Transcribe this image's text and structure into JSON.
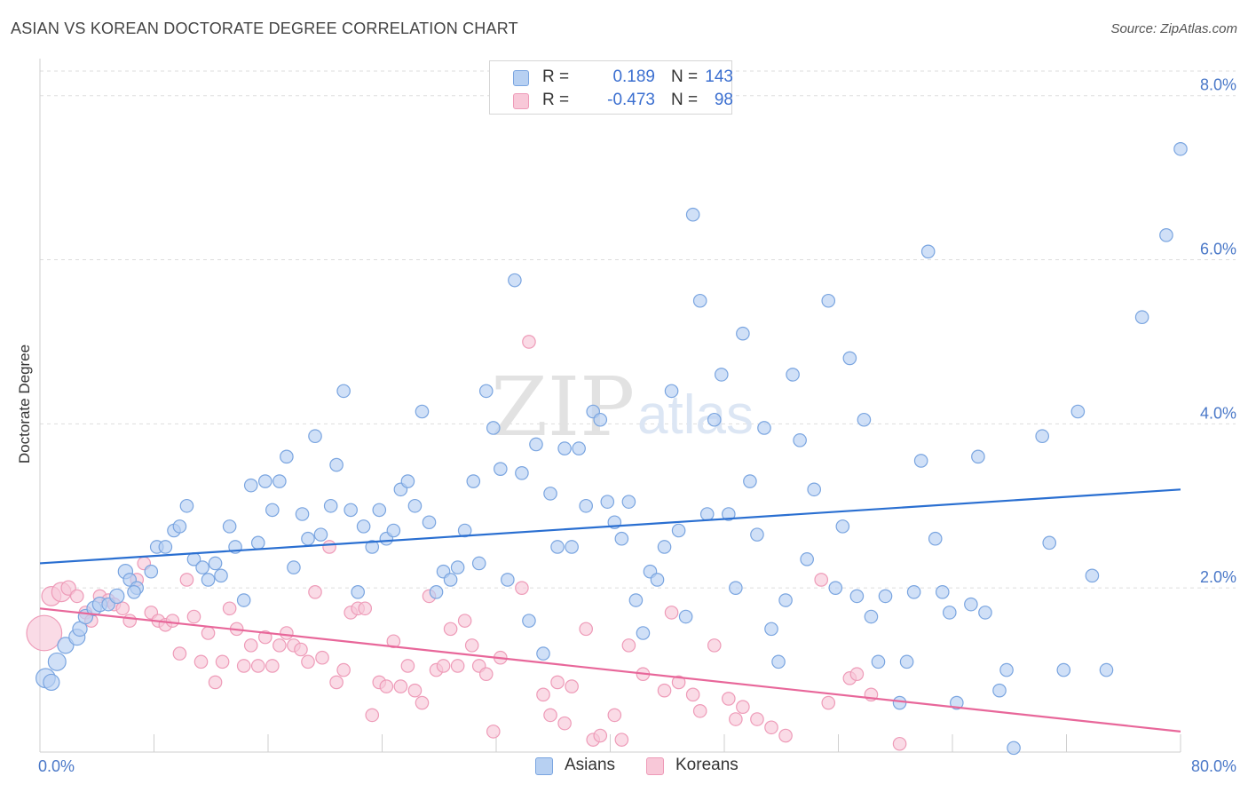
{
  "title": "ASIAN VS KOREAN DOCTORATE DEGREE CORRELATION CHART",
  "source": "Source: ZipAtlas.com",
  "watermark": {
    "zip": "ZIP",
    "atlas": "atlas"
  },
  "legend": {
    "asians": {
      "r_label": "R =",
      "r_value": "0.189",
      "n_label": "N =",
      "n_value": "143"
    },
    "koreans": {
      "r_label": "R =",
      "r_value": "-0.473",
      "n_label": "N =",
      "n_value": "98"
    }
  },
  "bottom_legend": {
    "asians": "Asians",
    "koreans": "Koreans"
  },
  "colors": {
    "asian_fill": "#b7d0f2",
    "asian_stroke": "#7aa5e0",
    "asian_line": "#2a6fd1",
    "korean_fill": "#f8c8d8",
    "korean_stroke": "#ee9bb8",
    "korean_line": "#e8679a",
    "tick_text": "#4a78c8",
    "grid": "#dddddd"
  },
  "chart_data": {
    "type": "scatter",
    "title": "ASIAN VS KOREAN DOCTORATE DEGREE CORRELATION CHART",
    "xlabel": "",
    "ylabel": "Doctorate Degree",
    "xlim": [
      0,
      80
    ],
    "ylim": [
      0,
      8.3
    ],
    "x_tick_labels": [
      "0.0%",
      "80.0%"
    ],
    "y_ticks": [
      2,
      4,
      6,
      8
    ],
    "y_tick_labels": [
      "2.0%",
      "4.0%",
      "6.0%",
      "8.0%"
    ],
    "grid": "horizontal dashed",
    "legend_position": "top-center",
    "series": [
      {
        "name": "Asians",
        "trend": [
          [
            0,
            2.3
          ],
          [
            80,
            3.2
          ]
        ],
        "points": [
          [
            0.4,
            0.9,
            1.2
          ],
          [
            0.8,
            0.85,
            1.0
          ],
          [
            1.2,
            1.1,
            1.1
          ],
          [
            1.8,
            1.3,
            1.0
          ],
          [
            2.6,
            1.4,
            1.0
          ],
          [
            2.8,
            1.5,
            0.9
          ],
          [
            3.2,
            1.65,
            0.9
          ],
          [
            3.8,
            1.75,
            0.9
          ],
          [
            4.2,
            1.8,
            0.9
          ],
          [
            4.8,
            1.8,
            0.8
          ],
          [
            5.4,
            1.9,
            0.9
          ],
          [
            6.0,
            2.2,
            0.9
          ],
          [
            6.3,
            2.1,
            0.8
          ],
          [
            6.8,
            2.0,
            0.8
          ],
          [
            6.6,
            1.95,
            0.8
          ],
          [
            7.8,
            2.2,
            0.8
          ],
          [
            8.2,
            2.5,
            0.8
          ],
          [
            8.8,
            2.5,
            0.8
          ],
          [
            9.4,
            2.7,
            0.8
          ],
          [
            9.8,
            2.75,
            0.8
          ],
          [
            10.3,
            3.0,
            0.8
          ],
          [
            10.8,
            2.35,
            0.8
          ],
          [
            11.4,
            2.25,
            0.8
          ],
          [
            11.8,
            2.1,
            0.8
          ],
          [
            12.3,
            2.3,
            0.8
          ],
          [
            12.7,
            2.15,
            0.8
          ],
          [
            13.3,
            2.75,
            0.8
          ],
          [
            13.7,
            2.5,
            0.8
          ],
          [
            14.3,
            1.85,
            0.8
          ],
          [
            14.8,
            3.25,
            0.8
          ],
          [
            15.3,
            2.55,
            0.8
          ],
          [
            15.8,
            3.3,
            0.8
          ],
          [
            16.3,
            2.95,
            0.8
          ],
          [
            16.8,
            3.3,
            0.8
          ],
          [
            17.3,
            3.6,
            0.8
          ],
          [
            17.8,
            2.25,
            0.8
          ],
          [
            18.4,
            2.9,
            0.8
          ],
          [
            18.8,
            2.6,
            0.8
          ],
          [
            19.3,
            3.85,
            0.8
          ],
          [
            19.7,
            2.65,
            0.8
          ],
          [
            20.4,
            3.0,
            0.8
          ],
          [
            20.8,
            3.5,
            0.8
          ],
          [
            21.3,
            4.4,
            0.8
          ],
          [
            21.8,
            2.95,
            0.8
          ],
          [
            22.3,
            1.95,
            0.8
          ],
          [
            22.7,
            2.75,
            0.8
          ],
          [
            23.3,
            2.5,
            0.8
          ],
          [
            23.8,
            2.95,
            0.8
          ],
          [
            24.3,
            2.6,
            0.8
          ],
          [
            24.8,
            2.7,
            0.8
          ],
          [
            25.3,
            3.2,
            0.8
          ],
          [
            25.8,
            3.3,
            0.8
          ],
          [
            26.3,
            3.0,
            0.8
          ],
          [
            26.8,
            4.15,
            0.8
          ],
          [
            27.3,
            2.8,
            0.8
          ],
          [
            27.8,
            1.95,
            0.8
          ],
          [
            28.3,
            2.2,
            0.8
          ],
          [
            28.8,
            2.1,
            0.8
          ],
          [
            29.3,
            2.25,
            0.8
          ],
          [
            29.8,
            2.7,
            0.8
          ],
          [
            30.4,
            3.3,
            0.8
          ],
          [
            30.8,
            2.3,
            0.8
          ],
          [
            31.3,
            4.4,
            0.8
          ],
          [
            31.8,
            3.95,
            0.8
          ],
          [
            32.3,
            3.45,
            0.8
          ],
          [
            32.8,
            2.1,
            0.8
          ],
          [
            33.3,
            5.75,
            0.8
          ],
          [
            33.8,
            3.4,
            0.8
          ],
          [
            34.3,
            1.6,
            0.8
          ],
          [
            34.8,
            3.75,
            0.8
          ],
          [
            35.3,
            1.2,
            0.8
          ],
          [
            35.8,
            3.15,
            0.8
          ],
          [
            36.3,
            2.5,
            0.8
          ],
          [
            36.8,
            3.7,
            0.8
          ],
          [
            37.3,
            2.5,
            0.8
          ],
          [
            37.8,
            3.7,
            0.8
          ],
          [
            38.3,
            3.0,
            0.8
          ],
          [
            38.8,
            4.15,
            0.8
          ],
          [
            39.3,
            4.05,
            0.8
          ],
          [
            39.8,
            3.05,
            0.8
          ],
          [
            40.3,
            2.8,
            0.8
          ],
          [
            40.8,
            2.6,
            0.8
          ],
          [
            41.3,
            3.05,
            0.8
          ],
          [
            41.8,
            1.85,
            0.8
          ],
          [
            42.3,
            1.45,
            0.8
          ],
          [
            42.8,
            2.2,
            0.8
          ],
          [
            43.3,
            2.1,
            0.8
          ],
          [
            43.8,
            2.5,
            0.8
          ],
          [
            44.3,
            4.4,
            0.8
          ],
          [
            44.8,
            2.7,
            0.8
          ],
          [
            45.3,
            1.65,
            0.8
          ],
          [
            45.8,
            6.55,
            0.8
          ],
          [
            46.3,
            5.5,
            0.8
          ],
          [
            46.8,
            2.9,
            0.8
          ],
          [
            47.3,
            4.05,
            0.8
          ],
          [
            47.8,
            4.6,
            0.8
          ],
          [
            48.3,
            2.9,
            0.8
          ],
          [
            48.8,
            2.0,
            0.8
          ],
          [
            49.3,
            5.1,
            0.8
          ],
          [
            49.8,
            3.3,
            0.8
          ],
          [
            50.3,
            2.65,
            0.8
          ],
          [
            50.8,
            3.95,
            0.8
          ],
          [
            51.3,
            1.5,
            0.8
          ],
          [
            51.8,
            1.1,
            0.8
          ],
          [
            52.3,
            1.85,
            0.8
          ],
          [
            52.8,
            4.6,
            0.8
          ],
          [
            53.3,
            3.8,
            0.8
          ],
          [
            53.8,
            2.35,
            0.8
          ],
          [
            54.3,
            3.2,
            0.8
          ],
          [
            55.3,
            5.5,
            0.8
          ],
          [
            55.8,
            2.0,
            0.8
          ],
          [
            56.3,
            2.75,
            0.8
          ],
          [
            56.8,
            4.8,
            0.8
          ],
          [
            57.3,
            1.9,
            0.8
          ],
          [
            57.8,
            4.05,
            0.8
          ],
          [
            58.3,
            1.65,
            0.8
          ],
          [
            58.8,
            1.1,
            0.8
          ],
          [
            59.3,
            1.9,
            0.8
          ],
          [
            60.3,
            0.6,
            0.8
          ],
          [
            60.8,
            1.1,
            0.8
          ],
          [
            61.3,
            1.95,
            0.8
          ],
          [
            61.8,
            3.55,
            0.8
          ],
          [
            62.3,
            6.1,
            0.8
          ],
          [
            62.8,
            2.6,
            0.8
          ],
          [
            63.3,
            1.95,
            0.8
          ],
          [
            63.8,
            1.7,
            0.8
          ],
          [
            64.3,
            0.6,
            0.8
          ],
          [
            65.3,
            1.8,
            0.8
          ],
          [
            65.8,
            3.6,
            0.8
          ],
          [
            66.3,
            1.7,
            0.8
          ],
          [
            67.3,
            0.75,
            0.8
          ],
          [
            67.8,
            1.0,
            0.8
          ],
          [
            68.3,
            0.05,
            0.8
          ],
          [
            70.3,
            3.85,
            0.8
          ],
          [
            70.8,
            2.55,
            0.8
          ],
          [
            71.8,
            1.0,
            0.8
          ],
          [
            72.8,
            4.15,
            0.8
          ],
          [
            73.8,
            2.15,
            0.8
          ],
          [
            74.8,
            1.0,
            0.8
          ],
          [
            77.3,
            5.3,
            0.8
          ],
          [
            79.0,
            6.3,
            0.8
          ],
          [
            80.0,
            7.35,
            0.8
          ]
        ]
      },
      {
        "name": "Koreans",
        "trend": [
          [
            0,
            1.75
          ],
          [
            80,
            0.25
          ]
        ],
        "points": [
          [
            0.3,
            1.45,
            2.2
          ],
          [
            0.8,
            1.9,
            1.2
          ],
          [
            1.5,
            1.95,
            1.2
          ],
          [
            2.0,
            2.0,
            0.9
          ],
          [
            2.6,
            1.9,
            0.8
          ],
          [
            3.2,
            1.7,
            0.8
          ],
          [
            3.6,
            1.6,
            0.8
          ],
          [
            4.2,
            1.9,
            0.8
          ],
          [
            4.8,
            1.85,
            0.8
          ],
          [
            5.2,
            1.8,
            0.8
          ],
          [
            5.8,
            1.75,
            0.8
          ],
          [
            6.3,
            1.6,
            0.8
          ],
          [
            6.8,
            2.1,
            0.8
          ],
          [
            7.3,
            2.3,
            0.8
          ],
          [
            7.8,
            1.7,
            0.8
          ],
          [
            8.3,
            1.6,
            0.8
          ],
          [
            8.8,
            1.55,
            0.8
          ],
          [
            9.3,
            1.6,
            0.8
          ],
          [
            9.8,
            1.2,
            0.8
          ],
          [
            10.3,
            2.1,
            0.8
          ],
          [
            10.8,
            1.65,
            0.8
          ],
          [
            11.3,
            1.1,
            0.8
          ],
          [
            11.8,
            1.45,
            0.8
          ],
          [
            12.3,
            0.85,
            0.8
          ],
          [
            12.8,
            1.1,
            0.8
          ],
          [
            13.3,
            1.75,
            0.8
          ],
          [
            13.8,
            1.5,
            0.8
          ],
          [
            14.3,
            1.05,
            0.8
          ],
          [
            14.8,
            1.3,
            0.8
          ],
          [
            15.3,
            1.05,
            0.8
          ],
          [
            15.8,
            1.4,
            0.8
          ],
          [
            16.3,
            1.05,
            0.8
          ],
          [
            16.8,
            1.3,
            0.8
          ],
          [
            17.3,
            1.45,
            0.8
          ],
          [
            17.8,
            1.3,
            0.8
          ],
          [
            18.3,
            1.25,
            0.8
          ],
          [
            18.8,
            1.1,
            0.8
          ],
          [
            19.3,
            1.95,
            0.8
          ],
          [
            19.8,
            1.15,
            0.8
          ],
          [
            20.3,
            2.5,
            0.8
          ],
          [
            20.8,
            0.85,
            0.8
          ],
          [
            21.3,
            1.0,
            0.8
          ],
          [
            21.8,
            1.7,
            0.8
          ],
          [
            22.3,
            1.75,
            0.8
          ],
          [
            22.8,
            1.75,
            0.8
          ],
          [
            23.3,
            0.45,
            0.8
          ],
          [
            23.8,
            0.85,
            0.8
          ],
          [
            24.3,
            0.8,
            0.8
          ],
          [
            24.8,
            1.35,
            0.8
          ],
          [
            25.3,
            0.8,
            0.8
          ],
          [
            25.8,
            1.05,
            0.8
          ],
          [
            26.3,
            0.75,
            0.8
          ],
          [
            26.8,
            0.6,
            0.8
          ],
          [
            27.3,
            1.9,
            0.8
          ],
          [
            27.8,
            1.0,
            0.8
          ],
          [
            28.3,
            1.05,
            0.8
          ],
          [
            28.8,
            1.5,
            0.8
          ],
          [
            29.3,
            1.05,
            0.8
          ],
          [
            29.8,
            1.6,
            0.8
          ],
          [
            30.3,
            1.3,
            0.8
          ],
          [
            30.8,
            1.05,
            0.8
          ],
          [
            31.3,
            0.95,
            0.8
          ],
          [
            31.8,
            0.25,
            0.8
          ],
          [
            32.3,
            1.15,
            0.8
          ],
          [
            33.8,
            2.0,
            0.8
          ],
          [
            34.3,
            5.0,
            0.8
          ],
          [
            35.3,
            0.7,
            0.8
          ],
          [
            35.8,
            0.45,
            0.8
          ],
          [
            36.3,
            0.85,
            0.8
          ],
          [
            36.8,
            0.35,
            0.8
          ],
          [
            37.3,
            0.8,
            0.8
          ],
          [
            38.3,
            1.5,
            0.8
          ],
          [
            38.8,
            0.15,
            0.8
          ],
          [
            39.3,
            0.2,
            0.8
          ],
          [
            40.3,
            0.45,
            0.8
          ],
          [
            40.8,
            0.15,
            0.8
          ],
          [
            41.3,
            1.3,
            0.8
          ],
          [
            42.3,
            0.95,
            0.8
          ],
          [
            43.8,
            0.75,
            0.8
          ],
          [
            44.3,
            1.7,
            0.8
          ],
          [
            44.8,
            0.85,
            0.8
          ],
          [
            45.8,
            0.7,
            0.8
          ],
          [
            46.3,
            0.5,
            0.8
          ],
          [
            47.3,
            1.3,
            0.8
          ],
          [
            48.3,
            0.65,
            0.8
          ],
          [
            48.8,
            0.4,
            0.8
          ],
          [
            49.3,
            0.55,
            0.8
          ],
          [
            50.3,
            0.4,
            0.8
          ],
          [
            51.3,
            0.3,
            0.8
          ],
          [
            52.3,
            0.2,
            0.8
          ],
          [
            54.8,
            2.1,
            0.8
          ],
          [
            55.3,
            0.6,
            0.8
          ],
          [
            56.8,
            0.9,
            0.8
          ],
          [
            57.3,
            0.95,
            0.8
          ],
          [
            58.3,
            0.7,
            0.8
          ],
          [
            60.3,
            0.1,
            0.8
          ]
        ]
      }
    ]
  }
}
